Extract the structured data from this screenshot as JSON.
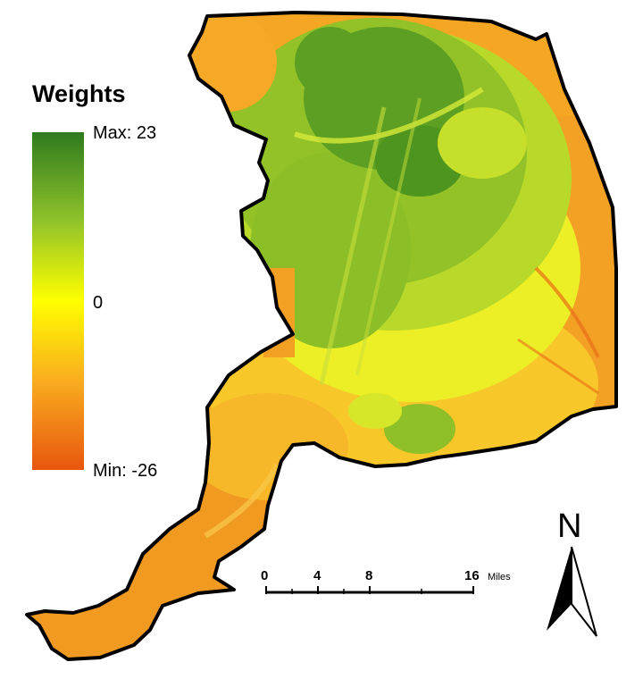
{
  "legend": {
    "title": "Weights",
    "max_label": "Max: 23",
    "mid_label": "0",
    "min_label": "Min: -26",
    "colors": {
      "max": "#2e7a1e",
      "mid_green": "#9cc82a",
      "mid": "#ffff00",
      "low_orange": "#f7a41e",
      "min": "#e8560e"
    }
  },
  "scale_bar": {
    "ticks": [
      "0",
      "4",
      "8",
      "16"
    ],
    "unit": "Miles"
  },
  "north_arrow": {
    "letter": "N",
    "icon": "north-arrow-icon"
  }
}
